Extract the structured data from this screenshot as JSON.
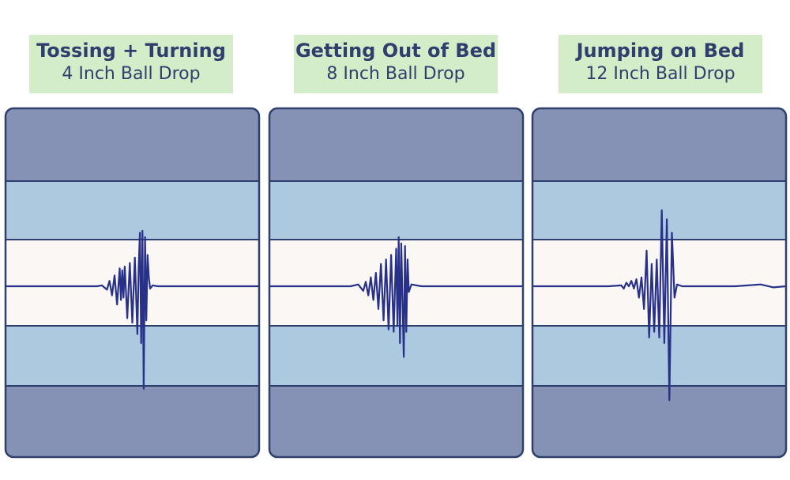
{
  "panels": [
    {
      "title": "Tossing + Turning",
      "subtitle": "4 Inch Ball Drop"
    },
    {
      "title": "Getting Out of Bed",
      "subtitle": "8 Inch Ball Drop"
    },
    {
      "title": "Jumping on Bed",
      "subtitle": "12 Inch Ball Drop"
    }
  ],
  "colors": {
    "outer_band": "#8592b6",
    "inner_band": "#adc9e0",
    "center_band": "#fbf7f5",
    "frame": "#2e3f6e",
    "trace": "#27318a",
    "label_bg": "#d2edc8",
    "label_text": "#2e3f6e"
  },
  "chart_data": [
    {
      "type": "line",
      "title": "Tossing + Turning",
      "subtitle": "4 Inch Ball Drop",
      "xlim": [
        0,
        1
      ],
      "ylim": [
        -1,
        1
      ],
      "bands": [
        -1,
        -0.7,
        -0.25,
        0.25,
        0.7,
        1
      ],
      "x": [
        0,
        0.36,
        0.38,
        0.4,
        0.41,
        0.42,
        0.43,
        0.44,
        0.45,
        0.455,
        0.46,
        0.465,
        0.47,
        0.48,
        0.49,
        0.5,
        0.51,
        0.52,
        0.525,
        0.53,
        0.535,
        0.54,
        0.545,
        0.55,
        0.555,
        0.56,
        0.565,
        0.57,
        0.58,
        0.6,
        0.8,
        1
      ],
      "y": [
        0,
        0,
        0.01,
        -0.03,
        0.06,
        -0.08,
        0.12,
        -0.16,
        0.2,
        -0.12,
        0.18,
        -0.1,
        0.22,
        -0.28,
        0.26,
        -0.32,
        0.32,
        -0.42,
        0.2,
        0.6,
        -0.5,
        0.62,
        -0.9,
        0.55,
        -0.3,
        0.35,
        0.1,
        -0.02,
        0.01,
        0,
        0,
        0
      ]
    },
    {
      "type": "line",
      "title": "Getting Out of Bed",
      "subtitle": "8 Inch Ball Drop",
      "xlim": [
        0,
        1
      ],
      "ylim": [
        -1,
        1
      ],
      "bands": [
        -1,
        -0.7,
        -0.25,
        0.25,
        0.7,
        1
      ],
      "x": [
        0,
        0.32,
        0.35,
        0.37,
        0.38,
        0.39,
        0.4,
        0.41,
        0.42,
        0.43,
        0.44,
        0.45,
        0.46,
        0.47,
        0.48,
        0.49,
        0.5,
        0.505,
        0.51,
        0.515,
        0.52,
        0.53,
        0.535,
        0.54,
        0.545,
        0.55,
        0.56,
        0.6,
        0.8,
        1
      ],
      "y": [
        0,
        0,
        0.02,
        -0.04,
        0.05,
        -0.08,
        0.1,
        -0.12,
        0.15,
        -0.2,
        0.25,
        -0.3,
        0.3,
        -0.38,
        0.35,
        -0.4,
        0.42,
        -0.35,
        0.55,
        -0.5,
        0.48,
        -0.62,
        0.45,
        -0.4,
        0.3,
        -0.05,
        0.02,
        0,
        0,
        0
      ]
    },
    {
      "type": "line",
      "title": "Jumping on Bed",
      "subtitle": "12 Inch Ball Drop",
      "xlim": [
        0,
        1
      ],
      "ylim": [
        -1,
        1
      ],
      "bands": [
        -1,
        -0.7,
        -0.25,
        0.25,
        0.7,
        1
      ],
      "x": [
        0,
        0.3,
        0.35,
        0.36,
        0.37,
        0.38,
        0.39,
        0.4,
        0.41,
        0.42,
        0.43,
        0.44,
        0.45,
        0.46,
        0.47,
        0.48,
        0.49,
        0.5,
        0.51,
        0.52,
        0.53,
        0.54,
        0.55,
        0.56,
        0.57,
        0.59,
        0.62,
        0.7,
        0.8,
        0.9,
        0.95,
        1
      ],
      "y": [
        0,
        0,
        0.01,
        -0.02,
        0.04,
        0,
        0.06,
        -0.02,
        0.08,
        -0.1,
        0.1,
        -0.2,
        0.4,
        -0.45,
        0.25,
        -0.4,
        0.3,
        -0.45,
        0.85,
        -0.5,
        0.75,
        -1,
        0.6,
        -0.1,
        0.02,
        0,
        0,
        0,
        0,
        0.02,
        -0.01,
        0
      ]
    }
  ]
}
